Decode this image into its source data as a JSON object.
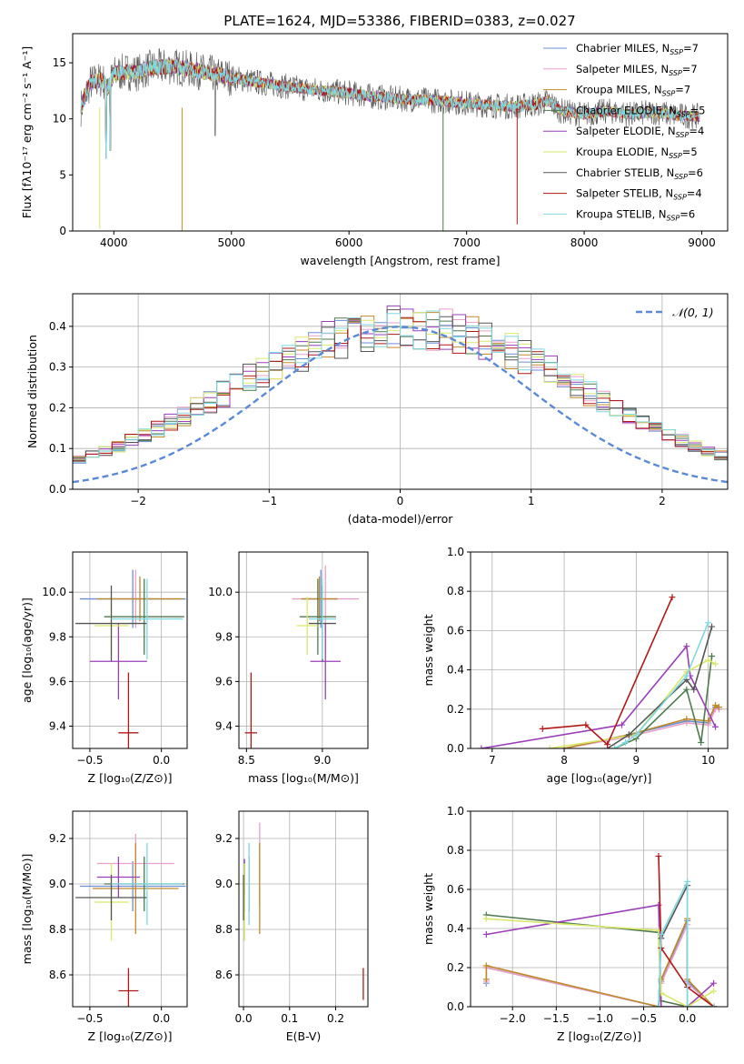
{
  "figure": {
    "title": "PLATE=1624, MJD=53386, FIBERID=0383, z=0.027"
  },
  "colors": {
    "series": [
      "#6a8fd4",
      "#e8a0c8",
      "#c08a2a",
      "#4f7a4f",
      "#9a3fb8",
      "#d9e86a",
      "#555555",
      "#b01818",
      "#7fd8e0"
    ]
  },
  "legend": {
    "entries": [
      {
        "label": "Chabrier MILES, N",
        "sub": "SSP",
        "suffix": "=7"
      },
      {
        "label": "Salpeter MILES, N",
        "sub": "SSP",
        "suffix": "=7"
      },
      {
        "label": "Kroupa MILES, N",
        "sub": "SSP",
        "suffix": "=7"
      },
      {
        "label": "Chabrier ELODIE, N",
        "sub": "SSP",
        "suffix": "=5"
      },
      {
        "label": "Salpeter ELODIE, N",
        "sub": "SSP",
        "suffix": "=4"
      },
      {
        "label": "Kroupa ELODIE, N",
        "sub": "SSP",
        "suffix": "=5"
      },
      {
        "label": "Chabrier STELIB, N",
        "sub": "SSP",
        "suffix": "=6"
      },
      {
        "label": "Salpeter STELIB, N",
        "sub": "SSP",
        "suffix": "=4"
      },
      {
        "label": "Kroupa STELIB, N",
        "sub": "SSP",
        "suffix": "=6"
      }
    ]
  },
  "chart_data": [
    {
      "id": "spectrum",
      "type": "line",
      "xlabel": "wavelength [Angstrom, rest frame]",
      "ylabel": "Flux [fλ10⁻¹⁷ erg cm⁻² s⁻¹ A⁻¹]",
      "xlim": [
        3650,
        9220
      ],
      "ylim": [
        0,
        17.6
      ],
      "xticks": [
        4000,
        5000,
        6000,
        7000,
        8000,
        9000
      ],
      "yticks": [
        0,
        5,
        10,
        15
      ],
      "grid": false,
      "legend_position": "top-right",
      "continuum": {
        "x": [
          3720,
          3800,
          3900,
          3950,
          4000,
          4100,
          4200,
          4300,
          4400,
          4500,
          4600,
          4800,
          5000,
          5200,
          5400,
          5600,
          5800,
          6000,
          6200,
          6400,
          6600,
          6800,
          7000,
          7200,
          7400,
          7600,
          7700,
          7800,
          8000,
          8200,
          8400,
          8600,
          8800,
          9000
        ],
        "y": [
          11.0,
          13.2,
          13.5,
          12.8,
          14.0,
          14.2,
          14.1,
          14.5,
          14.6,
          14.7,
          14.5,
          14.1,
          13.7,
          13.3,
          13.0,
          12.7,
          12.5,
          12.3,
          12.0,
          11.8,
          11.7,
          11.6,
          11.4,
          11.2,
          11.1,
          11.3,
          11.6,
          10.7,
          10.4,
          10.7,
          10.4,
          10.6,
          10.3,
          10.2
        ]
      }
    },
    {
      "id": "residuals",
      "type": "histogram",
      "xlabel": "(data-model)/error",
      "ylabel": "Normed distribution",
      "xlim": [
        -2.5,
        2.5
      ],
      "ylim": [
        0,
        0.48
      ],
      "xticks": [
        -2,
        -1,
        0,
        1,
        2
      ],
      "yticks": [
        0.0,
        0.1,
        0.2,
        0.3,
        0.4
      ],
      "grid": true,
      "legend_position": "top-right",
      "legend_label": "𝒩(0, 1)",
      "bin_width": 0.1,
      "series_base": [
        0.027,
        0.03,
        0.034,
        0.038,
        0.043,
        0.049,
        0.056,
        0.064,
        0.073,
        0.083,
        0.094,
        0.106,
        0.119,
        0.133,
        0.148,
        0.164,
        0.181,
        0.198,
        0.216,
        0.234,
        0.252,
        0.27,
        0.288,
        0.305,
        0.321,
        0.336,
        0.35,
        0.362,
        0.373,
        0.382,
        0.39,
        0.395,
        0.398,
        0.399,
        0.398,
        0.395,
        0.39,
        0.382,
        0.373,
        0.362,
        0.35,
        0.336,
        0.321,
        0.305,
        0.288,
        0.27,
        0.252,
        0.234,
        0.216,
        0.198,
        0.181,
        0.164,
        0.148,
        0.133,
        0.119,
        0.106,
        0.094,
        0.083,
        0.073,
        0.064,
        0.056,
        0.049,
        0.043,
        0.038,
        0.034,
        0.03,
        0.027
      ]
    },
    {
      "id": "age-vs-Z",
      "type": "errorbar",
      "xlabel": "Z [log₁₀(Z/Z⊙)]",
      "ylabel": "age  [log₁₀(age/yr)]",
      "xlim": [
        -0.62,
        0.18
      ],
      "ylim": [
        9.3,
        10.18
      ],
      "xticks": [
        -0.5,
        0.0
      ],
      "yticks": [
        9.4,
        9.6,
        9.8,
        10.0
      ],
      "grid": true,
      "points": [
        {
          "x": -0.2,
          "y": 9.97,
          "xerr": 0.37,
          "yerr": 0.13,
          "c": 0
        },
        {
          "x": -0.18,
          "y": 9.97,
          "xerr": 0.12,
          "yerr": 0.13,
          "c": 1
        },
        {
          "x": -0.15,
          "y": 9.97,
          "xerr": 0.3,
          "yerr": 0.1,
          "c": 2
        },
        {
          "x": -0.12,
          "y": 9.89,
          "xerr": 0.28,
          "yerr": 0.17,
          "c": 3
        },
        {
          "x": -0.3,
          "y": 9.69,
          "xerr": 0.2,
          "yerr": 0.17,
          "c": 4
        },
        {
          "x": -0.35,
          "y": 9.85,
          "xerr": 0.12,
          "yerr": 0.13,
          "c": 5
        },
        {
          "x": -0.35,
          "y": 9.86,
          "xerr": 0.25,
          "yerr": 0.17,
          "c": 6
        },
        {
          "x": -0.23,
          "y": 9.37,
          "xerr": 0.07,
          "yerr": 0.27,
          "c": 7
        },
        {
          "x": -0.1,
          "y": 9.88,
          "xerr": 0.25,
          "yerr": 0.18,
          "c": 8
        }
      ]
    },
    {
      "id": "age-vs-mass",
      "type": "errorbar",
      "xlabel": "mass [log₁₀(M/M⊙)]",
      "ylabel": "",
      "xlim": [
        8.45,
        9.3
      ],
      "ylim": [
        9.3,
        10.18
      ],
      "xticks": [
        8.5,
        9.0
      ],
      "yticks": [
        9.4,
        9.6,
        9.8,
        10.0
      ],
      "grid": true,
      "points": [
        {
          "x": 8.99,
          "y": 9.97,
          "xerr": 0.11,
          "yerr": 0.13,
          "c": 0
        },
        {
          "x": 9.02,
          "y": 9.97,
          "xerr": 0.22,
          "yerr": 0.15,
          "c": 1
        },
        {
          "x": 8.98,
          "y": 9.97,
          "xerr": 0.12,
          "yerr": 0.1,
          "c": 2
        },
        {
          "x": 8.97,
          "y": 9.89,
          "xerr": 0.12,
          "yerr": 0.17,
          "c": 3
        },
        {
          "x": 9.02,
          "y": 9.69,
          "xerr": 0.1,
          "yerr": 0.17,
          "c": 4
        },
        {
          "x": 8.9,
          "y": 9.85,
          "xerr": 0.07,
          "yerr": 0.13,
          "c": 5
        },
        {
          "x": 9.0,
          "y": 9.86,
          "xerr": 0.09,
          "yerr": 0.17,
          "c": 6
        },
        {
          "x": 8.53,
          "y": 9.37,
          "xerr": 0.04,
          "yerr": 0.27,
          "c": 7
        },
        {
          "x": 9.0,
          "y": 9.88,
          "xerr": 0.09,
          "yerr": 0.18,
          "c": 8
        }
      ]
    },
    {
      "id": "weight-vs-age",
      "type": "line",
      "xlabel": "age  [log₁₀(age/yr)]",
      "ylabel": "mass weight",
      "xlim": [
        6.7,
        10.27
      ],
      "ylim": [
        0,
        1.0
      ],
      "xticks": [
        7,
        8,
        9,
        10
      ],
      "yticks": [
        0.0,
        0.2,
        0.4,
        0.6,
        0.8,
        1.0
      ],
      "grid": true,
      "series": [
        {
          "c": 0,
          "x": [
            8.0,
            8.9,
            9.7,
            10.0,
            10.1,
            10.15
          ],
          "y": [
            0.0,
            0.07,
            0.14,
            0.13,
            0.21,
            0.2
          ]
        },
        {
          "c": 1,
          "x": [
            8.0,
            8.9,
            9.7,
            10.0,
            10.1,
            10.15
          ],
          "y": [
            0.0,
            0.06,
            0.13,
            0.12,
            0.2,
            0.2
          ]
        },
        {
          "c": 2,
          "x": [
            8.0,
            8.9,
            9.7,
            10.0,
            10.1,
            10.15
          ],
          "y": [
            0.0,
            0.07,
            0.15,
            0.14,
            0.22,
            0.21
          ]
        },
        {
          "c": 3,
          "x": [
            8.7,
            9.0,
            9.7,
            9.9,
            10.05
          ],
          "y": [
            0.0,
            0.05,
            0.3,
            0.03,
            0.47
          ]
        },
        {
          "c": 4,
          "x": [
            6.85,
            8.8,
            9.7,
            9.75,
            10.1
          ],
          "y": [
            0.0,
            0.12,
            0.52,
            0.37,
            0.11
          ]
        },
        {
          "c": 5,
          "x": [
            7.8,
            9.0,
            9.7,
            10.0,
            10.1
          ],
          "y": [
            0.0,
            0.07,
            0.39,
            0.45,
            0.43
          ]
        },
        {
          "c": 6,
          "x": [
            8.6,
            8.9,
            9.7,
            9.8,
            10.05
          ],
          "y": [
            0.0,
            0.07,
            0.35,
            0.3,
            0.62
          ]
        },
        {
          "c": 7,
          "x": [
            7.7,
            8.3,
            8.6,
            9.5
          ],
          "y": [
            0.1,
            0.12,
            0.02,
            0.77
          ]
        },
        {
          "c": 8,
          "x": [
            8.7,
            8.85,
            9.0,
            9.7,
            10.0
          ],
          "y": [
            0.0,
            0.03,
            0.07,
            0.37,
            0.64
          ]
        }
      ]
    },
    {
      "id": "mass-vs-Z",
      "type": "errorbar",
      "xlabel": "Z [log₁₀(Z/Z⊙)]",
      "ylabel": "mass [log₁₀(M/M⊙)]",
      "xlim": [
        -0.62,
        0.18
      ],
      "ylim": [
        8.46,
        9.32
      ],
      "xticks": [
        -0.5,
        0.0
      ],
      "yticks": [
        8.6,
        8.8,
        9.0,
        9.2
      ],
      "grid": true,
      "points": [
        {
          "x": -0.2,
          "y": 8.99,
          "xerr": 0.37,
          "yerr": 0.11,
          "c": 0
        },
        {
          "x": -0.18,
          "y": 9.09,
          "xerr": 0.27,
          "yerr": 0.13,
          "c": 1
        },
        {
          "x": -0.18,
          "y": 8.98,
          "xerr": 0.3,
          "yerr": 0.2,
          "c": 2
        },
        {
          "x": -0.12,
          "y": 9.0,
          "xerr": 0.28,
          "yerr": 0.12,
          "c": 3
        },
        {
          "x": -0.3,
          "y": 9.03,
          "xerr": 0.15,
          "yerr": 0.09,
          "c": 4
        },
        {
          "x": -0.35,
          "y": 8.92,
          "xerr": 0.12,
          "yerr": 0.17,
          "c": 5
        },
        {
          "x": -0.35,
          "y": 8.94,
          "xerr": 0.25,
          "yerr": 0.1,
          "c": 6
        },
        {
          "x": -0.23,
          "y": 8.53,
          "xerr": 0.07,
          "yerr": 0.1,
          "c": 7
        },
        {
          "x": -0.1,
          "y": 9.0,
          "xerr": 0.25,
          "yerr": 0.18,
          "c": 8
        }
      ]
    },
    {
      "id": "mass-vs-ebv",
      "type": "errorbar",
      "xlabel": "E(B-V)",
      "ylabel": "",
      "xlim": [
        -0.01,
        0.27
      ],
      "ylim": [
        8.46,
        9.32
      ],
      "xticks": [
        0.0,
        0.1,
        0.2
      ],
      "yticks": [
        8.6,
        8.8,
        9.0,
        9.2
      ],
      "grid": true,
      "points": [
        {
          "x": 0.002,
          "y": 8.99,
          "xerr": 0.0,
          "yerr": 0.11,
          "c": 0
        },
        {
          "x": 0.035,
          "y": 9.09,
          "xerr": 0.0,
          "yerr": 0.18,
          "c": 1
        },
        {
          "x": 0.035,
          "y": 8.98,
          "xerr": 0.0,
          "yerr": 0.2,
          "c": 2
        },
        {
          "x": 0.012,
          "y": 9.0,
          "xerr": 0.0,
          "yerr": 0.12,
          "c": 3
        },
        {
          "x": 0.002,
          "y": 9.03,
          "xerr": 0.0,
          "yerr": 0.08,
          "c": 4
        },
        {
          "x": 0.002,
          "y": 8.92,
          "xerr": 0.0,
          "yerr": 0.17,
          "c": 5
        },
        {
          "x": 0.0,
          "y": 8.94,
          "xerr": 0.0,
          "yerr": 0.1,
          "c": 6
        },
        {
          "x": 0.26,
          "y": 8.56,
          "xerr": 0.0,
          "yerr": 0.07,
          "c": 7
        },
        {
          "x": 0.012,
          "y": 9.0,
          "xerr": 0.0,
          "yerr": 0.18,
          "c": 8
        }
      ]
    },
    {
      "id": "weight-vs-Z",
      "type": "line",
      "xlabel": "Z [log₁₀(Z/Z⊙)]",
      "ylabel": "mass weight",
      "xlim": [
        -2.48,
        0.46
      ],
      "ylim": [
        0,
        1.0
      ],
      "xticks": [
        -2.0,
        -1.5,
        -1.0,
        -0.5,
        0.0
      ],
      "yticks": [
        0.0,
        0.2,
        0.4,
        0.6,
        0.8,
        1.0
      ],
      "grid": true,
      "series": [
        {
          "c": 0,
          "x": [
            -2.3,
            -2.3,
            -0.33,
            -0.3,
            0.0,
            0.0,
            0.3
          ],
          "y": [
            0.12,
            0.2,
            0.0,
            0.13,
            0.44,
            0.13,
            0.0
          ]
        },
        {
          "c": 1,
          "x": [
            -2.3,
            -2.3,
            -0.33,
            -0.3,
            0.0,
            0.0,
            0.3
          ],
          "y": [
            0.13,
            0.2,
            0.0,
            0.12,
            0.42,
            0.12,
            0.0
          ]
        },
        {
          "c": 2,
          "x": [
            -2.3,
            -2.3,
            -0.33,
            -0.3,
            0.0,
            0.0,
            0.3
          ],
          "y": [
            0.14,
            0.21,
            0.0,
            0.14,
            0.45,
            0.14,
            0.0
          ]
        },
        {
          "c": 3,
          "x": [
            -2.3,
            -0.33,
            -0.3,
            0.0,
            0.3
          ],
          "y": [
            0.47,
            0.38,
            0.03,
            0.0,
            0.0
          ]
        },
        {
          "c": 4,
          "x": [
            -2.3,
            -0.33,
            -0.3,
            0.0,
            0.3
          ],
          "y": [
            0.37,
            0.52,
            0.0,
            0.0,
            0.12
          ]
        },
        {
          "c": 5,
          "x": [
            -2.3,
            -0.33,
            -0.3,
            0.0,
            0.3
          ],
          "y": [
            0.45,
            0.39,
            0.07,
            0.0,
            0.08
          ]
        },
        {
          "c": 6,
          "x": [
            -0.33,
            -0.3,
            0.0,
            0.0,
            0.3
          ],
          "y": [
            0.0,
            0.35,
            0.62,
            0.0,
            0.0
          ]
        },
        {
          "c": 7,
          "x": [
            -0.33,
            -0.3,
            0.0,
            0.3
          ],
          "y": [
            0.77,
            0.3,
            0.1,
            0.0
          ]
        },
        {
          "c": 8,
          "x": [
            -0.33,
            -0.3,
            0.0,
            0.0,
            0.3
          ],
          "y": [
            0.0,
            0.37,
            0.64,
            0.0,
            0.0
          ]
        }
      ]
    }
  ]
}
